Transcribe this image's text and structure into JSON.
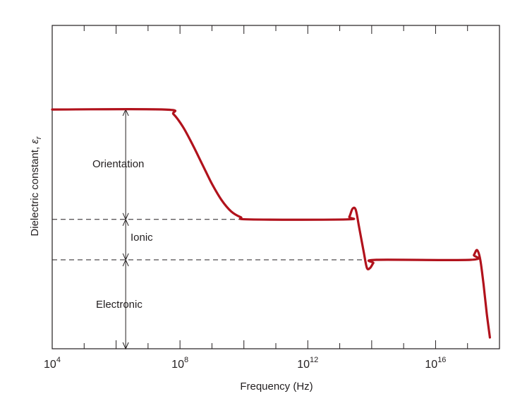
{
  "chart_data": {
    "type": "line",
    "title": "",
    "xlabel": "Frequency (Hz)",
    "ylabel": "Dielectric constant, ",
    "ylabel_symbol": "ε",
    "ylabel_subscript": "r",
    "x_scale": "log",
    "x_tick_labels": [
      {
        "base": "10",
        "exp": "4",
        "x": 4
      },
      {
        "base": "10",
        "exp": "8",
        "x": 8
      },
      {
        "base": "10",
        "exp": "12",
        "x": 12
      },
      {
        "base": "10",
        "exp": "16",
        "x": 16
      }
    ],
    "xlim_log10": [
      4,
      18
    ],
    "ylim": [
      0,
      10
    ],
    "levels": {
      "orientation_top": 7.4,
      "ionic_top": 4.0,
      "electronic_top": 2.75
    },
    "region_labels": {
      "orientation": "Orientation",
      "ionic": "Ionic",
      "electronic": "Electronic"
    },
    "series_color": "#b1121c",
    "series": [
      {
        "points_log10f_eps": [
          [
            4.0,
            7.4
          ],
          [
            7.5,
            7.4
          ],
          [
            7.8,
            7.25
          ],
          [
            8.1,
            6.85
          ],
          [
            8.4,
            6.3
          ],
          [
            8.7,
            5.7
          ],
          [
            9.0,
            5.1
          ],
          [
            9.3,
            4.6
          ],
          [
            9.6,
            4.25
          ],
          [
            9.9,
            4.07
          ],
          [
            10.2,
            4.0
          ],
          [
            13.2,
            4.0
          ],
          [
            13.3,
            4.08
          ],
          [
            13.4,
            4.33
          ],
          [
            13.5,
            4.3
          ],
          [
            13.6,
            3.8
          ],
          [
            13.75,
            3.0
          ],
          [
            13.85,
            2.5
          ],
          [
            13.95,
            2.5
          ],
          [
            14.05,
            2.65
          ],
          [
            14.15,
            2.75
          ],
          [
            17.1,
            2.75
          ],
          [
            17.2,
            2.9
          ],
          [
            17.3,
            3.05
          ],
          [
            17.4,
            2.75
          ],
          [
            17.5,
            2.0
          ],
          [
            17.6,
            1.1
          ],
          [
            17.7,
            0.35
          ]
        ]
      }
    ]
  }
}
